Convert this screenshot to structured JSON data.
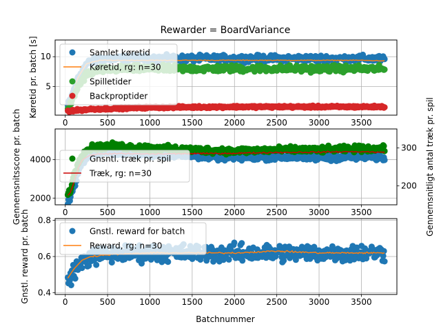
{
  "figure": {
    "title": "Rewarder = BoardVariance",
    "xlabel": "Batchnummer"
  },
  "colors": {
    "blue": "#1f77b4",
    "orange": "#ff7f0e",
    "green_tab": "#2ca02c",
    "red_tab": "#d62728",
    "green": "#008000",
    "red": "#cc0000"
  },
  "chart_data": [
    {
      "type": "scatter",
      "ylabel": "Køretid pr. batch [s]",
      "xlim": [
        -120,
        3920
      ],
      "ylim": [
        0.2,
        12.8
      ],
      "xticks": [
        0,
        500,
        1000,
        1500,
        2000,
        2500,
        3000,
        3500
      ],
      "yticks": [
        5,
        10
      ],
      "x_range": [
        30,
        3780
      ],
      "grid": true,
      "legend_position": "upper-left",
      "series": [
        {
          "name": "Samlet køretid",
          "kind": "scatter",
          "color": "#1f77b4",
          "x": [
            30,
            80,
            150,
            250,
            400,
            800,
            1500,
            2500,
            3500,
            3780
          ],
          "values": [
            1.8,
            3.5,
            6.5,
            8.8,
            9.6,
            9.7,
            9.7,
            9.7,
            9.7,
            9.6
          ],
          "spread": 0.8
        },
        {
          "name": "Køretid, rg: n=30",
          "kind": "line",
          "color": "#ff7f0e",
          "x": [
            30,
            80,
            150,
            250,
            400,
            800,
            1500,
            2500,
            3500,
            3780
          ],
          "values": [
            1.8,
            3.5,
            6.5,
            8.8,
            9.4,
            9.4,
            9.4,
            9.4,
            9.4,
            9.3
          ]
        },
        {
          "name": "Spilletider",
          "kind": "scatter",
          "color": "#2ca02c",
          "x": [
            30,
            80,
            150,
            250,
            400,
            800,
            1500,
            2500,
            3500,
            3780
          ],
          "values": [
            0.9,
            2.5,
            5.0,
            7.0,
            7.8,
            8.0,
            8.0,
            8.0,
            8.0,
            7.9
          ],
          "spread": 0.8
        },
        {
          "name": "Backproptider",
          "kind": "scatter",
          "color": "#d62728",
          "x": [
            30,
            300,
            1000,
            2000,
            3000,
            3780
          ],
          "values": [
            0.9,
            1.2,
            1.5,
            1.6,
            1.6,
            1.6
          ],
          "spread": 0.25
        }
      ]
    },
    {
      "type": "scatter",
      "ylabel": "Gennemsnitsscore pr. batch",
      "ylabel_right": "Gennemsnitligt antal træk pr. spil",
      "xlim": [
        -120,
        3920
      ],
      "ylim": [
        1650,
        5600
      ],
      "y2lim": [
        150,
        350
      ],
      "xticks": [
        0,
        500,
        1000,
        1500,
        2000,
        2500,
        3000,
        3500
      ],
      "yticks": [
        2000,
        4000
      ],
      "y2ticks": [
        200,
        300
      ],
      "x_range": [
        30,
        3780
      ],
      "grid": true,
      "legend_position": "upper-left",
      "series": [
        {
          "name": "",
          "kind": "scatter",
          "axis": "left",
          "color": "#1f77b4",
          "x": [
            30,
            60,
            100,
            150,
            200,
            300,
            500,
            1000,
            1500,
            2000,
            2500,
            3000,
            3500,
            3780
          ],
          "values": [
            1800,
            2000,
            2600,
            3300,
            3900,
            4300,
            4400,
            4300,
            4200,
            4100,
            4150,
            4100,
            4150,
            4100
          ],
          "spread": 250
        },
        {
          "name": "Gnsntl. træk pr. spil",
          "kind": "scatter",
          "axis": "right",
          "color": "#008000",
          "x": [
            30,
            60,
            100,
            150,
            200,
            300,
            500,
            1000,
            1500,
            2000,
            2500,
            3000,
            3500,
            3780
          ],
          "values": [
            175,
            190,
            225,
            260,
            285,
            300,
            305,
            300,
            295,
            292,
            295,
            295,
            298,
            297
          ],
          "spread": 12
        },
        {
          "name": "Træk, rg: n=30",
          "kind": "line",
          "axis": "right",
          "color": "#cc0000",
          "x": [
            30,
            60,
            100,
            150,
            200,
            300,
            500,
            1000,
            1500,
            2000,
            2500,
            3000,
            3500,
            3780
          ],
          "values": [
            175,
            182,
            208,
            245,
            268,
            282,
            285,
            284,
            285,
            286,
            288,
            289,
            290,
            288
          ]
        }
      ]
    },
    {
      "type": "scatter",
      "ylabel": "Gnstl. reward pr. batch",
      "xlim": [
        -120,
        3920
      ],
      "ylim": [
        0.39,
        0.81
      ],
      "xticks": [
        0,
        500,
        1000,
        1500,
        2000,
        2500,
        3000,
        3500
      ],
      "yticks": [
        0.4,
        0.6,
        0.8
      ],
      "x_range": [
        30,
        3780
      ],
      "grid": true,
      "legend_position": "upper-left",
      "series": [
        {
          "name": "Gnstl. reward for batch",
          "kind": "scatter",
          "color": "#1f77b4",
          "x": [
            30,
            100,
            200,
            300,
            500,
            1000,
            1500,
            2000,
            2500,
            3000,
            3500,
            3780
          ],
          "values": [
            0.46,
            0.52,
            0.57,
            0.6,
            0.61,
            0.62,
            0.62,
            0.62,
            0.62,
            0.62,
            0.62,
            0.62
          ],
          "spread": 0.07
        },
        {
          "name": "Reward, rg: n=30",
          "kind": "line",
          "color": "#ff7f0e",
          "x": [
            30,
            100,
            200,
            300,
            500,
            1000,
            1500,
            2000,
            2500,
            3000,
            3500,
            3780
          ],
          "values": [
            0.48,
            0.53,
            0.58,
            0.6,
            0.61,
            0.62,
            0.62,
            0.62,
            0.63,
            0.62,
            0.62,
            0.62
          ]
        }
      ]
    }
  ]
}
